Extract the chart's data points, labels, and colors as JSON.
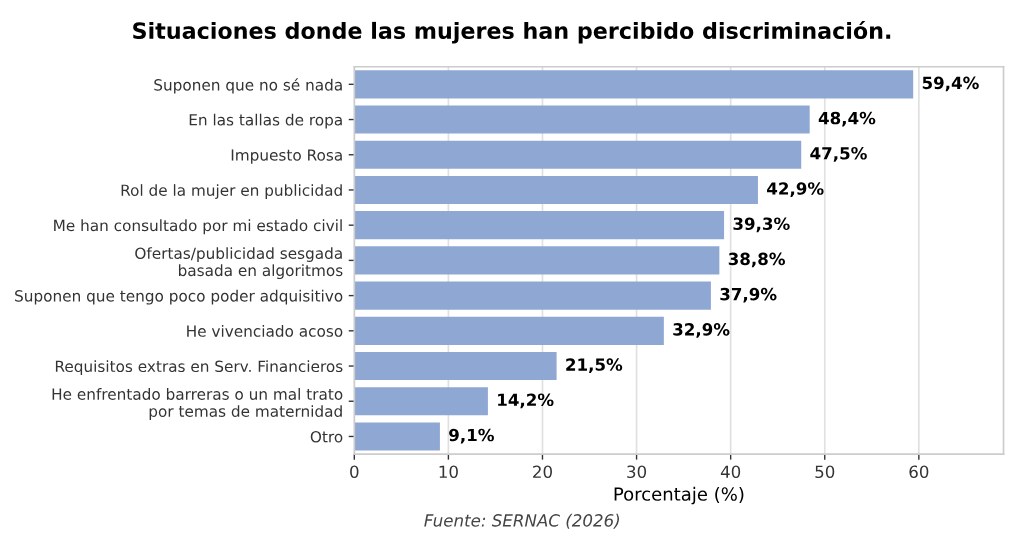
{
  "chart_data": {
    "type": "bar",
    "orientation": "horizontal",
    "title": "Situaciones donde las mujeres han percibido discriminación.",
    "categories": [
      "Suponen que no sé nada",
      "En las tallas de ropa",
      "Impuesto Rosa",
      "Rol de la mujer en publicidad",
      "Me han consultado por mi estado civil",
      "Ofertas/publicidad sesgada\nbasada en algoritmos",
      "Suponen que tengo poco poder adquisitivo",
      "He vivenciado acoso",
      "Requisitos extras en Serv. Financieros",
      "He enfrentado barreras o un mal trato\npor temas de maternidad",
      "Otro"
    ],
    "values": [
      59.4,
      48.4,
      47.5,
      42.9,
      39.3,
      38.8,
      37.9,
      32.9,
      21.5,
      14.2,
      9.1
    ],
    "value_labels": [
      "59,4%",
      "48,4%",
      "47,5%",
      "42,9%",
      "39,3%",
      "38,8%",
      "37,9%",
      "32,9%",
      "21,5%",
      "14,2%",
      "9,1%"
    ],
    "color": "#8fa8d3",
    "xlim": [
      0,
      69
    ],
    "xticks": [
      0,
      10,
      20,
      30,
      40,
      50,
      60
    ],
    "xlabel": "Porcentaje (%)",
    "grid": "x",
    "annotations": [
      "Fuente: SERNAC (2026)"
    ]
  }
}
